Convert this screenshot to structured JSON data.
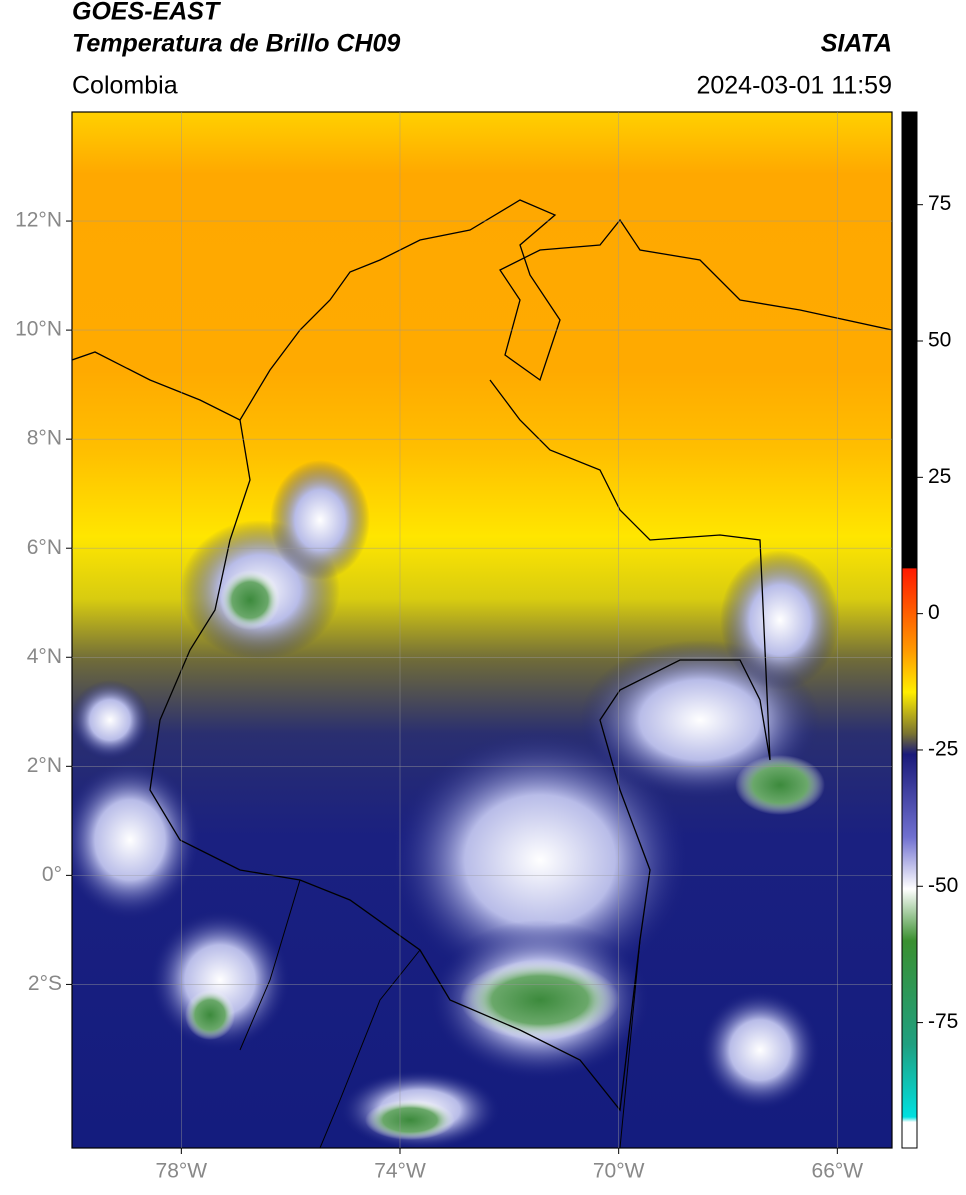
{
  "header": {
    "title": "GOES-EAST",
    "subtitle": "Temperatura de Brillo CH09",
    "source": "SIATA",
    "region": "Colombia",
    "datetime": "2024-03-01 11:59"
  },
  "map": {
    "xlim": [
      -80,
      -65
    ],
    "ylim": [
      -5,
      14
    ],
    "xticks": [
      {
        "value": -78,
        "label": "78°W"
      },
      {
        "value": -74,
        "label": "74°W"
      },
      {
        "value": -70,
        "label": "70°W"
      },
      {
        "value": -66,
        "label": "66°W"
      }
    ],
    "yticks": [
      {
        "value": 12,
        "label": "12°N"
      },
      {
        "value": 10,
        "label": "10°N"
      },
      {
        "value": 8,
        "label": "8°N"
      },
      {
        "value": 6,
        "label": "6°N"
      },
      {
        "value": 4,
        "label": "4°N"
      },
      {
        "value": 2,
        "label": "2°N"
      },
      {
        "value": 0,
        "label": "0°"
      },
      {
        "value": -2,
        "label": "2°S"
      }
    ]
  },
  "colorbar": {
    "lim": [
      -98,
      92
    ],
    "ticks": [
      75,
      50,
      25,
      0,
      -25,
      -50,
      -75
    ]
  }
}
